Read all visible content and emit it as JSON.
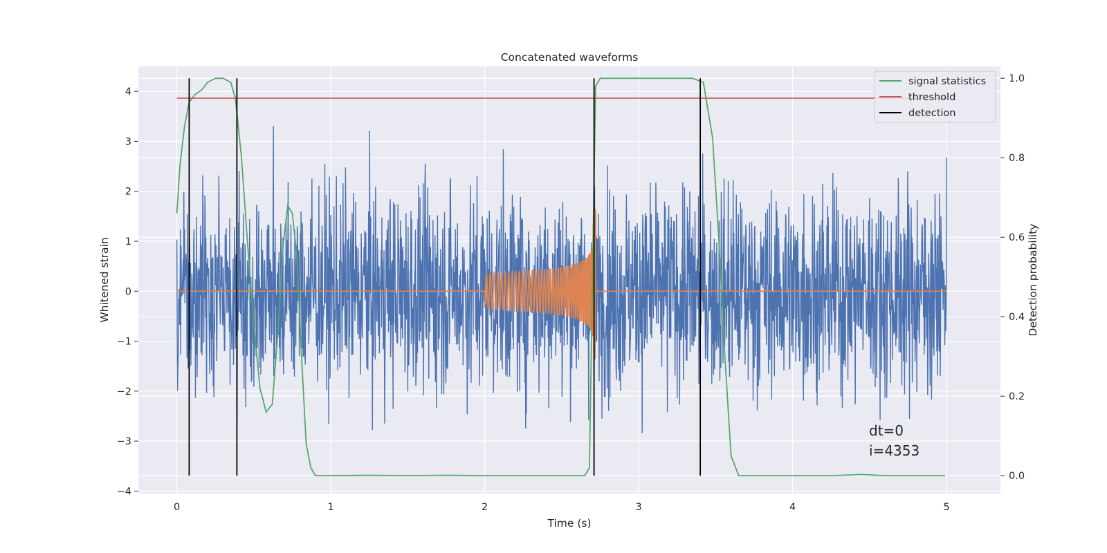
{
  "chart_data": {
    "type": "line",
    "title": "Concatenated waveforms",
    "xlabel": "Time (s)",
    "ylabel": "Whitened strain",
    "y2label": "Detection probability",
    "xlim": [
      -0.25,
      5.35
    ],
    "ylim": [
      -4.05,
      4.5
    ],
    "y2lim": [
      -0.045,
      1.03
    ],
    "x_ticks": [
      0,
      1,
      2,
      3,
      4,
      5
    ],
    "x_tick_labels": [
      "0",
      "1",
      "2",
      "3",
      "4",
      "5"
    ],
    "y_ticks": [
      4,
      3,
      2,
      1,
      0,
      -1,
      -2,
      -3,
      -4
    ],
    "y_tick_labels": [
      "4",
      "3",
      "2",
      "1",
      "0",
      "−1",
      "−2",
      "−3",
      "−4"
    ],
    "y2_ticks": [
      1.0,
      0.8,
      0.6,
      0.4,
      0.2,
      0.0
    ],
    "y2_tick_labels": [
      "1.0",
      "0.8",
      "0.6",
      "0.4",
      "0.2",
      "0.0"
    ],
    "grid": true,
    "legend_position": "top-right",
    "colors": {
      "strain": "#4c72b0",
      "waveform": "#dd8452",
      "signal_statistics": "#55a868",
      "threshold": "#c44e52",
      "detection": "#000000",
      "plot_bg": "#eaeaf2",
      "grid": "#ffffff"
    },
    "series": [
      {
        "name": "",
        "kind": "whitened_strain_noise",
        "axis": "left",
        "x_range": [
          0,
          5
        ],
        "amplitude_std": 1.0,
        "y_range_approx": [
          -3.7,
          4.1
        ]
      },
      {
        "name": "",
        "kind": "injected_chirp",
        "axis": "left",
        "x_range": [
          2.0,
          2.72
        ],
        "peak_amplitude": 1.65
      },
      {
        "name": "signal statistics",
        "axis": "right",
        "x": [
          0,
          0.02,
          0.05,
          0.08,
          0.12,
          0.16,
          0.2,
          0.25,
          0.3,
          0.35,
          0.38,
          0.42,
          0.46,
          0.5,
          0.54,
          0.58,
          0.62,
          0.66,
          0.69,
          0.72,
          0.75,
          0.78,
          0.81,
          0.84,
          0.87,
          0.9,
          1.0,
          1.25,
          1.5,
          1.75,
          2.0,
          2.25,
          2.5,
          2.65,
          2.68,
          2.7,
          2.72,
          2.75,
          2.8,
          3.0,
          3.2,
          3.35,
          3.42,
          3.48,
          3.52,
          3.56,
          3.6,
          3.65,
          3.7,
          4.0,
          4.25,
          4.45,
          4.6,
          4.8,
          4.99
        ],
        "y": [
          0.66,
          0.78,
          0.88,
          0.94,
          0.96,
          0.97,
          0.99,
          1.0,
          1.0,
          0.99,
          0.95,
          0.8,
          0.58,
          0.38,
          0.22,
          0.16,
          0.18,
          0.38,
          0.58,
          0.68,
          0.66,
          0.55,
          0.3,
          0.08,
          0.02,
          0.0,
          0.0,
          0.001,
          0.0,
          0.001,
          0.0,
          0.0,
          0.0,
          0.0,
          0.02,
          0.5,
          0.98,
          1.0,
          1.0,
          1.0,
          1.0,
          1.0,
          0.99,
          0.85,
          0.6,
          0.3,
          0.05,
          0.0,
          0.0,
          0.0,
          0.0,
          0.003,
          0.0,
          0.0,
          0.0
        ]
      },
      {
        "name": "threshold",
        "axis": "right",
        "x": [
          0,
          5
        ],
        "y": [
          0.95,
          0.95
        ]
      },
      {
        "name": "detection",
        "axis": "right",
        "kind": "vertical_lines",
        "x": [
          0.08,
          0.39,
          2.71,
          3.4
        ],
        "y_range": [
          0.0,
          1.0
        ]
      }
    ],
    "annotations": [
      "dt=0",
      "i=4353"
    ]
  }
}
